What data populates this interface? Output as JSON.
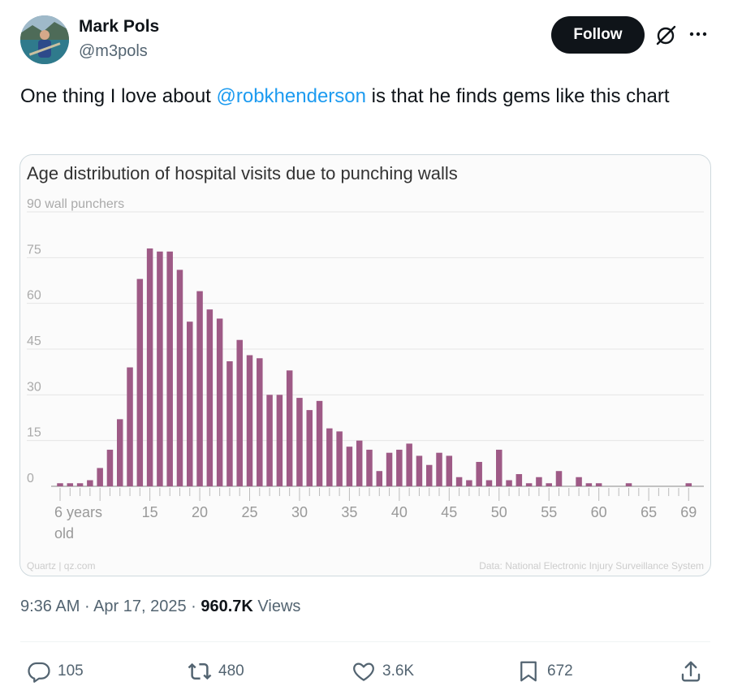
{
  "author": {
    "name": "Mark Pols",
    "handle": "@m3pols",
    "follow_label": "Follow"
  },
  "icons": {
    "grok": "grok-icon",
    "more": "more-options-icon",
    "reply": "reply-icon",
    "repost": "repost-icon",
    "like": "like-icon",
    "bookmark": "bookmark-icon",
    "share": "share-icon"
  },
  "post": {
    "text_before": "One thing I love about ",
    "mention": "@robkhenderson",
    "text_after": " is that he finds gems like this chart"
  },
  "chart_data": {
    "type": "bar",
    "title": "Age distribution of hospital visits due to punching walls",
    "ylabel": "wall punchers",
    "ylim": [
      0,
      90
    ],
    "yticks": [
      0,
      15,
      30,
      45,
      60,
      75,
      90
    ],
    "x": [
      6,
      7,
      8,
      9,
      10,
      11,
      12,
      13,
      14,
      15,
      16,
      17,
      18,
      19,
      20,
      21,
      22,
      23,
      24,
      25,
      26,
      27,
      28,
      29,
      30,
      31,
      32,
      33,
      34,
      35,
      36,
      37,
      38,
      39,
      40,
      41,
      42,
      43,
      44,
      45,
      46,
      47,
      48,
      49,
      50,
      51,
      52,
      53,
      54,
      55,
      56,
      57,
      58,
      59,
      60,
      61,
      62,
      63,
      64,
      65,
      66,
      67,
      68,
      69
    ],
    "values": [
      1,
      1,
      1,
      2,
      6,
      12,
      22,
      39,
      68,
      78,
      77,
      77,
      71,
      54,
      64,
      58,
      55,
      41,
      48,
      43,
      42,
      30,
      30,
      38,
      29,
      25,
      28,
      19,
      18,
      13,
      15,
      12,
      5,
      11,
      12,
      14,
      10,
      7,
      11,
      10,
      3,
      2,
      8,
      2,
      12,
      2,
      4,
      1,
      3,
      1,
      5,
      0,
      3,
      1,
      1,
      0,
      0,
      1,
      0,
      0,
      0,
      0,
      0,
      1
    ],
    "x_tick_labels": [
      "6 years old",
      "15",
      "20",
      "25",
      "30",
      "35",
      "40",
      "45",
      "50",
      "55",
      "60",
      "65",
      "69"
    ],
    "bar_color": "#9e5a86",
    "grid": true,
    "source_left": "Quartz | qz.com",
    "source_right": "Data: National Electronic Injury Surveillance System"
  },
  "meta": {
    "time": "9:36 AM",
    "sep1": " · ",
    "date": "Apr 17, 2025",
    "sep2": " · ",
    "views_count": "960.7K",
    "views_label": " Views"
  },
  "actions": {
    "replies": "105",
    "reposts": "480",
    "likes": "3.6K",
    "bookmarks": "672"
  }
}
